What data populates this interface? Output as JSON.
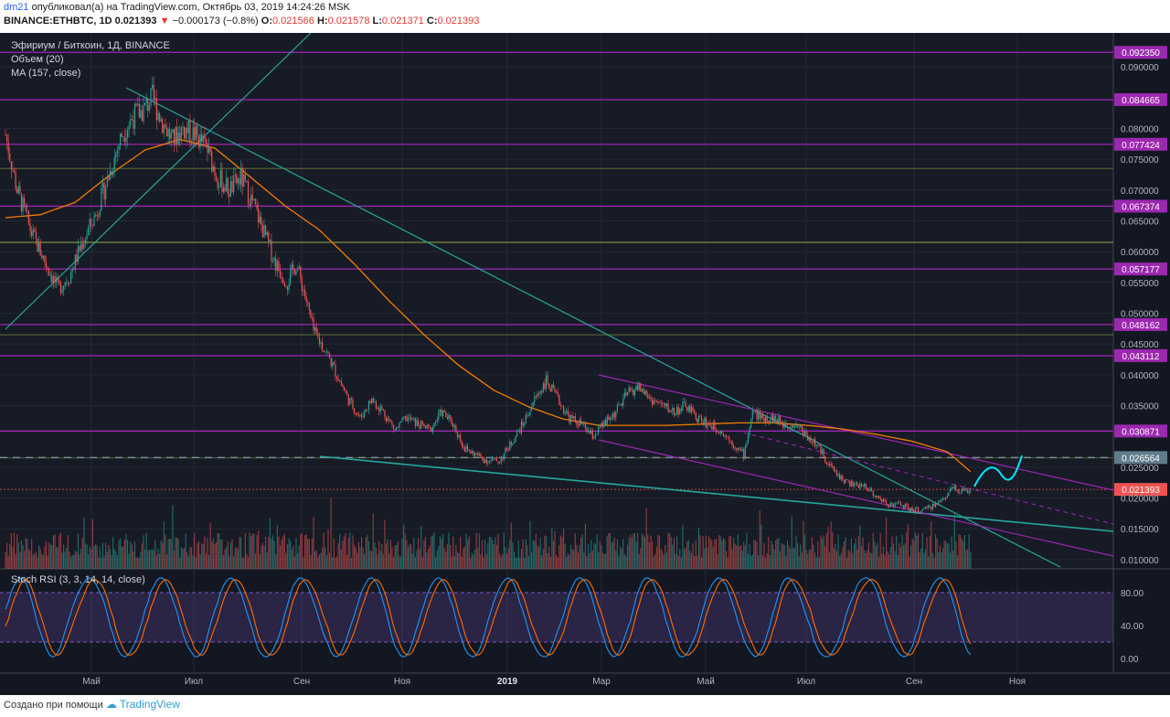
{
  "header": {
    "author": "dm21",
    "published_text": "опубликовал(а) на TradingView.com, Октябрь 03, 2019 14:24:26 MSK",
    "symbol_line": "BINANCE:ETHBTC, 1D",
    "last_price": "0.021393",
    "change": "−0.000173 (−0.8%)",
    "open_label": "O:",
    "open": "0.021566",
    "high_label": "H:",
    "high": "0.021578",
    "low_label": "L:",
    "low": "0.021371",
    "close_label": "C:",
    "close": "0.021393"
  },
  "overlay": {
    "title": "Эфириум / Биткоин, 1Д, BINANCE",
    "volume_label": "Объем (20)",
    "ma_label": "MA (157, close)",
    "stoch_label": "Stoch RSI (3, 3, 14, 14, close)"
  },
  "footer": {
    "created_with": "Создано при помощи",
    "brand": "TradingView"
  },
  "colors": {
    "background": "#131722",
    "up": "#26a69a",
    "down": "#ef5350",
    "ma": "#f57c00",
    "level": "#9c27b0",
    "trend": "#26a69a",
    "projection": "#00e5ff",
    "stoch_k": "#2196f3",
    "stoch_d": "#ff6d00",
    "stoch_band": "#7e57c2"
  },
  "chart_data": {
    "type": "candlestick",
    "x_ticks": [
      "Май",
      "Июл",
      "Сен",
      "Ноя",
      "2019",
      "Мар",
      "Май",
      "Июл",
      "Сен",
      "Ноя"
    ],
    "y_ticks": [
      "0.090000",
      "0.080000",
      "0.075000",
      "0.070000",
      "0.065000",
      "0.060000",
      "0.055000",
      "0.050000",
      "0.045000",
      "0.040000",
      "0.035000",
      "0.025000",
      "0.020000",
      "0.015000",
      "0.010000"
    ],
    "ylim": [
      0.0085,
      0.0955
    ],
    "x_range_days": 0,
    "price_path": [
      [
        0,
        0.079
      ],
      [
        8,
        0.07
      ],
      [
        18,
        0.063
      ],
      [
        28,
        0.058
      ],
      [
        36,
        0.054
      ],
      [
        44,
        0.056
      ],
      [
        52,
        0.061
      ],
      [
        62,
        0.066
      ],
      [
        72,
        0.073
      ],
      [
        80,
        0.079
      ],
      [
        88,
        0.082
      ],
      [
        95,
        0.083
      ],
      [
        101,
        0.085
      ],
      [
        108,
        0.081
      ],
      [
        115,
        0.078
      ],
      [
        122,
        0.08
      ],
      [
        130,
        0.079
      ],
      [
        138,
        0.077
      ],
      [
        146,
        0.072
      ],
      [
        154,
        0.07
      ],
      [
        162,
        0.072
      ],
      [
        170,
        0.068
      ],
      [
        178,
        0.063
      ],
      [
        186,
        0.058
      ],
      [
        194,
        0.055
      ],
      [
        200,
        0.058
      ],
      [
        206,
        0.053
      ],
      [
        212,
        0.047
      ],
      [
        220,
        0.044
      ],
      [
        228,
        0.04
      ],
      [
        236,
        0.036
      ],
      [
        244,
        0.033
      ],
      [
        252,
        0.036
      ],
      [
        260,
        0.034
      ],
      [
        268,
        0.031
      ],
      [
        276,
        0.033
      ],
      [
        284,
        0.032
      ],
      [
        292,
        0.031
      ],
      [
        300,
        0.034
      ],
      [
        308,
        0.032
      ],
      [
        316,
        0.028
      ],
      [
        324,
        0.027
      ],
      [
        332,
        0.026
      ],
      [
        340,
        0.026
      ],
      [
        348,
        0.029
      ],
      [
        356,
        0.032
      ],
      [
        364,
        0.036
      ],
      [
        372,
        0.039
      ],
      [
        380,
        0.036
      ],
      [
        388,
        0.033
      ],
      [
        396,
        0.032
      ],
      [
        404,
        0.03
      ],
      [
        412,
        0.032
      ],
      [
        420,
        0.034
      ],
      [
        428,
        0.037
      ],
      [
        436,
        0.038
      ],
      [
        444,
        0.036
      ],
      [
        452,
        0.035
      ],
      [
        460,
        0.034
      ],
      [
        468,
        0.035
      ],
      [
        476,
        0.033
      ],
      [
        484,
        0.032
      ],
      [
        492,
        0.031
      ],
      [
        500,
        0.029
      ],
      [
        508,
        0.027
      ],
      [
        514,
        0.034
      ],
      [
        520,
        0.033
      ],
      [
        528,
        0.033
      ],
      [
        536,
        0.032
      ],
      [
        544,
        0.032
      ],
      [
        552,
        0.03
      ],
      [
        560,
        0.028
      ],
      [
        568,
        0.025
      ],
      [
        576,
        0.023
      ],
      [
        584,
        0.022
      ],
      [
        592,
        0.022
      ],
      [
        600,
        0.02
      ],
      [
        608,
        0.019
      ],
      [
        616,
        0.019
      ],
      [
        624,
        0.018
      ],
      [
        632,
        0.018
      ],
      [
        640,
        0.019
      ],
      [
        646,
        0.02
      ],
      [
        652,
        0.022
      ],
      [
        658,
        0.021
      ],
      [
        664,
        0.0214
      ]
    ],
    "ma_path": [
      [
        0,
        0.0655
      ],
      [
        24,
        0.066
      ],
      [
        48,
        0.068
      ],
      [
        72,
        0.0725
      ],
      [
        96,
        0.0765
      ],
      [
        120,
        0.0782
      ],
      [
        144,
        0.0768
      ],
      [
        168,
        0.0722
      ],
      [
        192,
        0.0675
      ],
      [
        216,
        0.0635
      ],
      [
        240,
        0.058
      ],
      [
        264,
        0.052
      ],
      [
        288,
        0.0465
      ],
      [
        312,
        0.0415
      ],
      [
        336,
        0.0375
      ],
      [
        360,
        0.0348
      ],
      [
        384,
        0.0328
      ],
      [
        408,
        0.0318
      ],
      [
        432,
        0.0318
      ],
      [
        456,
        0.0318
      ],
      [
        480,
        0.032
      ],
      [
        504,
        0.0322
      ],
      [
        528,
        0.0322
      ],
      [
        552,
        0.0318
      ],
      [
        576,
        0.0312
      ],
      [
        600,
        0.0303
      ],
      [
        624,
        0.0292
      ],
      [
        648,
        0.0275
      ],
      [
        664,
        0.0243
      ]
    ],
    "horizontal_levels": [
      {
        "value": 0.09235,
        "label": "0.092350"
      },
      {
        "value": 0.084665,
        "label": "0.084665"
      },
      {
        "value": 0.077424,
        "label": "0.077424"
      },
      {
        "value": 0.067374,
        "label": "0.067374"
      },
      {
        "value": 0.057177,
        "label": "0.057177"
      },
      {
        "value": 0.048162,
        "label": "0.048162"
      },
      {
        "value": 0.043112,
        "label": "0.043112"
      },
      {
        "value": 0.030871,
        "label": "0.030871"
      }
    ],
    "dashed_level": {
      "value": 0.026564,
      "label": "0.026564"
    },
    "current_price": {
      "value": 0.021393,
      "label": "0.021393"
    },
    "stoch_ticks": [
      "80.00",
      "40.00",
      "0.00"
    ],
    "stoch_range": [
      0,
      100
    ],
    "stoch_bands": [
      80,
      20
    ]
  }
}
